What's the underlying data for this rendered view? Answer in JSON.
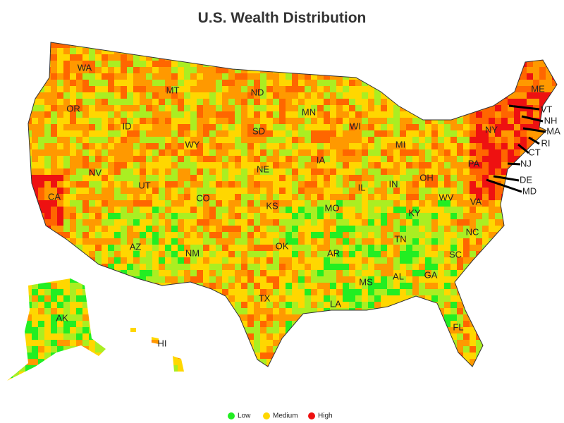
{
  "title": "U.S. Wealth Distribution",
  "legend": [
    {
      "label": "Low",
      "color": "#22ee22"
    },
    {
      "label": "Medium",
      "color": "#ffd700"
    },
    {
      "label": "High",
      "color": "#ee1111"
    }
  ],
  "states": [
    "WA",
    "OR",
    "ID",
    "MT",
    "WY",
    "ND",
    "SD",
    "NE",
    "CA",
    "NV",
    "UT",
    "CO",
    "KS",
    "MN",
    "IA",
    "WI",
    "MI",
    "IL",
    "IN",
    "OH",
    "PA",
    "NY",
    "ME",
    "VT",
    "NH",
    "MA",
    "RI",
    "CT",
    "NJ",
    "DE",
    "MD",
    "WV",
    "VA",
    "KY",
    "TN",
    "NC",
    "SC",
    "GA",
    "AL",
    "MS",
    "AR",
    "LA",
    "MO",
    "OK",
    "TX",
    "NM",
    "AZ",
    "AK",
    "HI",
    "FL"
  ]
}
